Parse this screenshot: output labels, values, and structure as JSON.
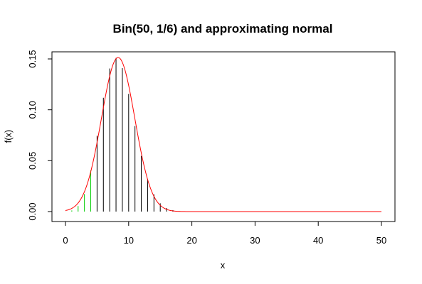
{
  "chart_data": {
    "type": "bar",
    "title": "Bin(50, 1/6) and approximating normal",
    "xlabel": "x",
    "ylabel": "f(x)",
    "xlim": [
      0,
      50
    ],
    "ylim": [
      0,
      0.15
    ],
    "x_ticks": [
      0,
      10,
      20,
      30,
      40,
      50
    ],
    "y_ticks": [
      "0.00",
      "0.05",
      "0.10",
      "0.15"
    ],
    "grid": false,
    "legend": "none",
    "colors": {
      "binomial": "#000000",
      "highlight": "#00cc00",
      "normal_curve": "#ff0000",
      "frame": "#000000"
    },
    "series": [
      {
        "type": "bars",
        "x": [
          0,
          1,
          2,
          3,
          4,
          5,
          6,
          7,
          8,
          9,
          10,
          11,
          12,
          13,
          14,
          15,
          16,
          17,
          18,
          19,
          20
        ],
        "values": [
          0.0001,
          0.0011,
          0.0054,
          0.0172,
          0.0405,
          0.0745,
          0.1118,
          0.1406,
          0.151,
          0.141,
          0.1156,
          0.0841,
          0.0547,
          0.032,
          0.0169,
          0.0081,
          0.0035,
          0.0014,
          0.0005,
          0.0002,
          0.0
        ],
        "highlighted_x": [
          0,
          1,
          2,
          3,
          4
        ]
      },
      {
        "type": "line",
        "mean": 8.3333,
        "sd": 2.6352
      }
    ]
  }
}
